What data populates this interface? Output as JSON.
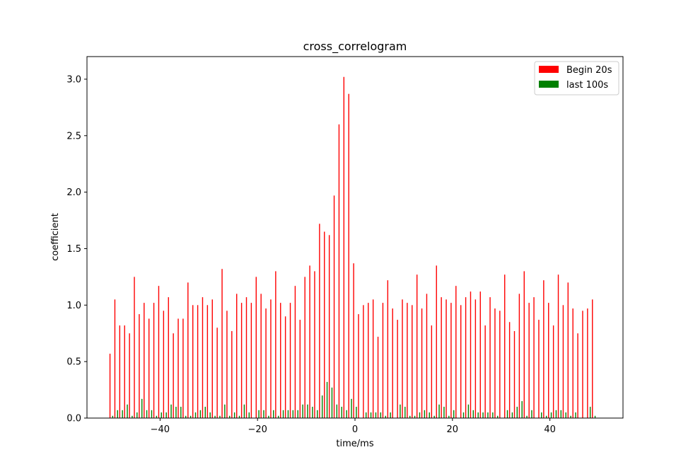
{
  "chart_data": {
    "type": "bar",
    "title": "cross_correlogram",
    "xlabel": "time/ms",
    "ylabel": "coefficient",
    "xlim": [
      -55,
      55
    ],
    "ylim": [
      0,
      3.2
    ],
    "xticks": [
      -40,
      -20,
      0,
      20,
      40
    ],
    "yticks": [
      0.0,
      0.5,
      1.0,
      1.5,
      2.0,
      2.5,
      3.0
    ],
    "xtick_labels": [
      "−40",
      "−20",
      "0",
      "20",
      "40"
    ],
    "ytick_labels": [
      "0.0",
      "0.5",
      "1.0",
      "1.5",
      "2.0",
      "2.5",
      "3.0"
    ],
    "grid": false,
    "legend_position": "top-right",
    "x": [
      -50,
      -49,
      -48,
      -47,
      -46,
      -45,
      -44,
      -43,
      -42,
      -41,
      -40,
      -39,
      -38,
      -37,
      -36,
      -35,
      -34,
      -33,
      -32,
      -31,
      -30,
      -29,
      -28,
      -27,
      -26,
      -25,
      -24,
      -23,
      -22,
      -21,
      -20,
      -19,
      -18,
      -17,
      -16,
      -15,
      -14,
      -13,
      -12,
      -11,
      -10,
      -9,
      -8,
      -7,
      -6,
      -5,
      -4,
      -3,
      -2,
      -1,
      0,
      1,
      2,
      3,
      4,
      5,
      6,
      7,
      8,
      9,
      10,
      11,
      12,
      13,
      14,
      15,
      16,
      17,
      18,
      19,
      20,
      21,
      22,
      23,
      24,
      25,
      26,
      27,
      28,
      29,
      30,
      31,
      32,
      33,
      34,
      35,
      36,
      37,
      38,
      39,
      40,
      41,
      42,
      43,
      44,
      45,
      46,
      47,
      48,
      49
    ],
    "series": [
      {
        "name": "Begin 20s",
        "color": "#ff0000",
        "values": [
          0.57,
          1.05,
          0.82,
          0.82,
          0.75,
          1.25,
          0.92,
          1.02,
          0.88,
          1.02,
          1.17,
          0.95,
          1.07,
          0.75,
          0.88,
          0.88,
          1.2,
          1.0,
          1.0,
          1.07,
          1.0,
          1.05,
          0.8,
          1.32,
          0.95,
          0.77,
          1.1,
          1.02,
          1.07,
          1.02,
          1.25,
          1.1,
          0.97,
          1.05,
          1.3,
          1.02,
          0.9,
          1.02,
          1.17,
          0.87,
          1.25,
          1.35,
          1.3,
          1.72,
          1.65,
          1.62,
          1.97,
          2.6,
          3.02,
          2.87,
          1.37,
          0.92,
          1.0,
          1.02,
          1.05,
          0.72,
          1.02,
          1.22,
          0.97,
          0.87,
          1.05,
          1.02,
          1.0,
          1.27,
          0.97,
          1.1,
          0.82,
          1.35,
          1.07,
          1.05,
          1.02,
          1.17,
          1.0,
          1.07,
          1.12,
          1.05,
          1.12,
          0.82,
          1.07,
          0.97,
          0.95,
          1.27,
          0.85,
          0.77,
          1.1,
          1.3,
          1.02,
          1.07,
          0.87,
          1.22,
          1.02,
          0.82,
          1.27,
          1.0,
          1.2,
          0.97,
          0.75,
          0.95,
          0.97,
          1.05
        ]
      },
      {
        "name": "last 100s",
        "color": "#008000",
        "values": [
          0.02,
          0.07,
          0.07,
          0.12,
          0.02,
          0.05,
          0.17,
          0.07,
          0.07,
          0.02,
          0.05,
          0.05,
          0.12,
          0.1,
          0.1,
          0.02,
          0.02,
          0.05,
          0.07,
          0.1,
          0.05,
          0.02,
          0.02,
          0.12,
          0.02,
          0.05,
          0.02,
          0.12,
          0.05,
          0.0,
          0.07,
          0.07,
          0.02,
          0.07,
          0.02,
          0.07,
          0.07,
          0.07,
          0.07,
          0.12,
          0.12,
          0.1,
          0.07,
          0.2,
          0.32,
          0.27,
          0.12,
          0.1,
          0.07,
          0.17,
          0.1,
          0.0,
          0.05,
          0.05,
          0.05,
          0.05,
          0.02,
          0.05,
          0.0,
          0.12,
          0.1,
          0.02,
          0.02,
          0.05,
          0.07,
          0.05,
          0.02,
          0.12,
          0.1,
          0.02,
          0.07,
          0.0,
          0.05,
          0.12,
          0.07,
          0.05,
          0.05,
          0.05,
          0.05,
          0.02,
          0.0,
          0.07,
          0.05,
          0.1,
          0.15,
          0.02,
          0.07,
          0.0,
          0.05,
          0.02,
          0.05,
          0.07,
          0.07,
          0.05,
          0.02,
          0.05,
          0.0,
          0.0,
          0.1,
          0.02
        ]
      }
    ]
  }
}
